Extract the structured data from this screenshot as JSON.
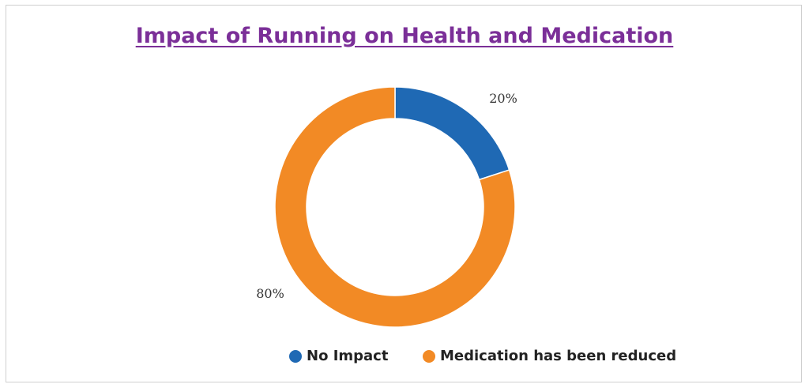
{
  "chart_data": {
    "type": "pie",
    "title": "Impact of Running on Health and Medication",
    "donut": true,
    "legend_position": "bottom",
    "slices": [
      {
        "label": "No Impact",
        "value": 20,
        "value_label": "20%",
        "color": "#1f69b4"
      },
      {
        "label": "Medication has been reduced",
        "value": 80,
        "value_label": "80%",
        "color": "#f28a25"
      }
    ]
  },
  "colors": {
    "title": "#7b2f98"
  }
}
